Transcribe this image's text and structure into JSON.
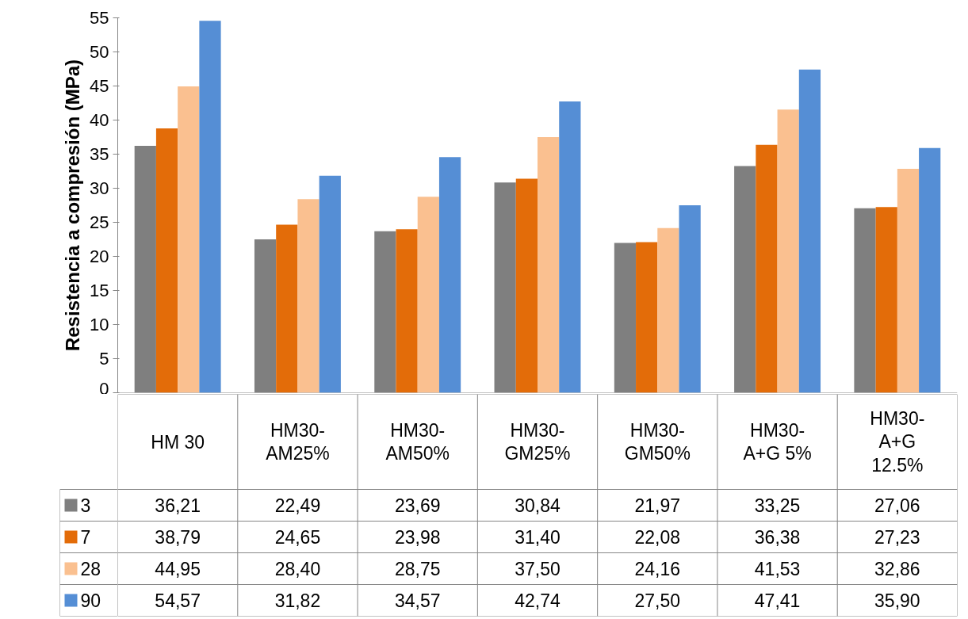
{
  "chart_data": {
    "type": "bar",
    "ylabel": "Resistencia a compresión (MPa)",
    "categories": [
      "HM 30",
      "HM30-AM25%",
      "HM30-AM50%",
      "HM30-GM25%",
      "HM30-GM50%",
      "HM30-A+G 5%",
      "HM30-A+G 12.5%"
    ],
    "series": [
      {
        "name": "3",
        "color": "#7f7f7f",
        "values": [
          36.21,
          22.49,
          23.69,
          30.84,
          21.97,
          33.25,
          27.06
        ],
        "value_labels": [
          "36,21",
          "22,49",
          "23,69",
          "30,84",
          "21,97",
          "33,25",
          "27,06"
        ]
      },
      {
        "name": "7",
        "color": "#e36c09",
        "values": [
          38.79,
          24.65,
          23.98,
          31.4,
          22.08,
          36.38,
          27.23
        ],
        "value_labels": [
          "38,79",
          "24,65",
          "23,98",
          "31,40",
          "22,08",
          "36,38",
          "27,23"
        ]
      },
      {
        "name": "28",
        "color": "#fac090",
        "values": [
          44.95,
          28.4,
          28.75,
          37.5,
          24.16,
          41.53,
          32.86
        ],
        "value_labels": [
          "44,95",
          "28,40",
          "28,75",
          "37,50",
          "24,16",
          "41,53",
          "32,86"
        ]
      },
      {
        "name": "90",
        "color": "#558ed5",
        "values": [
          54.57,
          31.82,
          34.57,
          42.74,
          27.5,
          47.41,
          35.9
        ],
        "value_labels": [
          "54,57",
          "31,82",
          "34,57",
          "42,74",
          "27,50",
          "47,41",
          "35,90"
        ]
      }
    ],
    "ylim": [
      0,
      55
    ],
    "yticks": [
      0,
      5,
      10,
      15,
      20,
      25,
      30,
      35,
      40,
      45,
      50,
      55
    ],
    "grid": false,
    "legend": "bottom"
  }
}
